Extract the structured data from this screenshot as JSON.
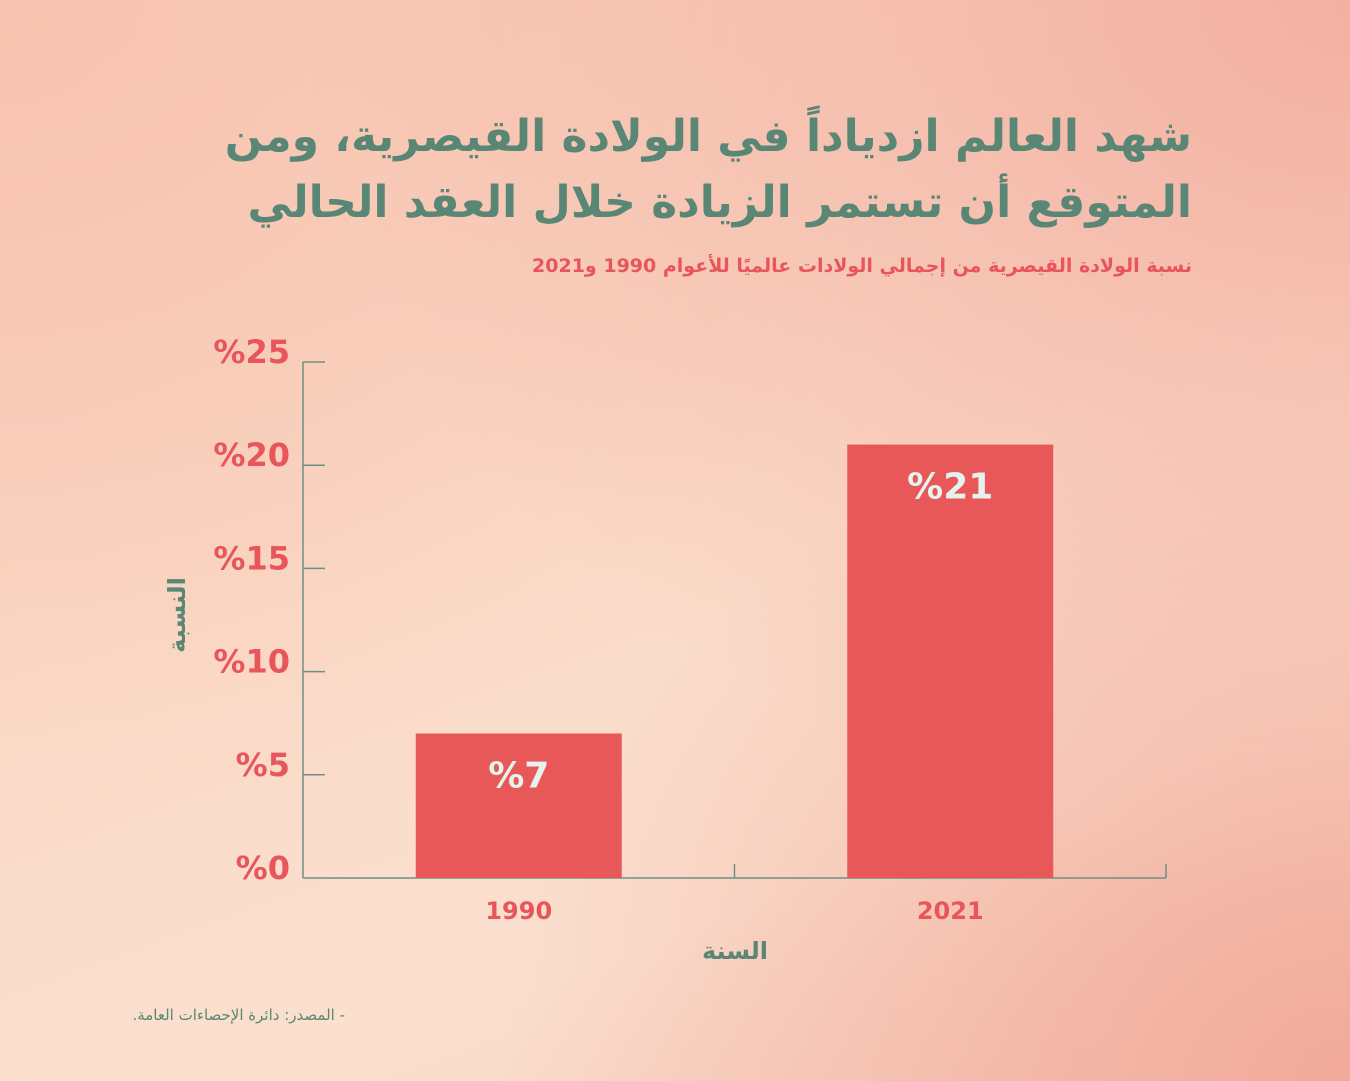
{
  "title": "شهد العالم ازدياداً في الولادة القيصرية، ومن المتوقع أن تستمر الزيادة خلال العقد الحالي",
  "subtitle": "نسبة الولادة القيصرية من إجمالي الولادات عالميًا للأعوام 1990 و2021",
  "source": "- المصدر: دائرة الإحصاءات العامة.",
  "colors": {
    "bar": "#e85858",
    "accent_text": "#e8555a",
    "heading": "#5a8775",
    "axis": "#6f8f83",
    "bar_label": "#e6f2ee"
  },
  "chart_data": {
    "type": "bar",
    "categories": [
      "1990",
      "2021"
    ],
    "values": [
      7,
      21
    ],
    "value_labels": [
      "%7",
      "%21"
    ],
    "xlabel": "السنة",
    "ylabel": "النسبة",
    "ylim": [
      0,
      25
    ],
    "yticks": [
      0,
      5,
      10,
      15,
      20,
      25
    ],
    "ytick_labels": [
      "%0",
      "%5",
      "%10",
      "%15",
      "%20",
      "%25"
    ],
    "grid": false,
    "legend": "none"
  }
}
